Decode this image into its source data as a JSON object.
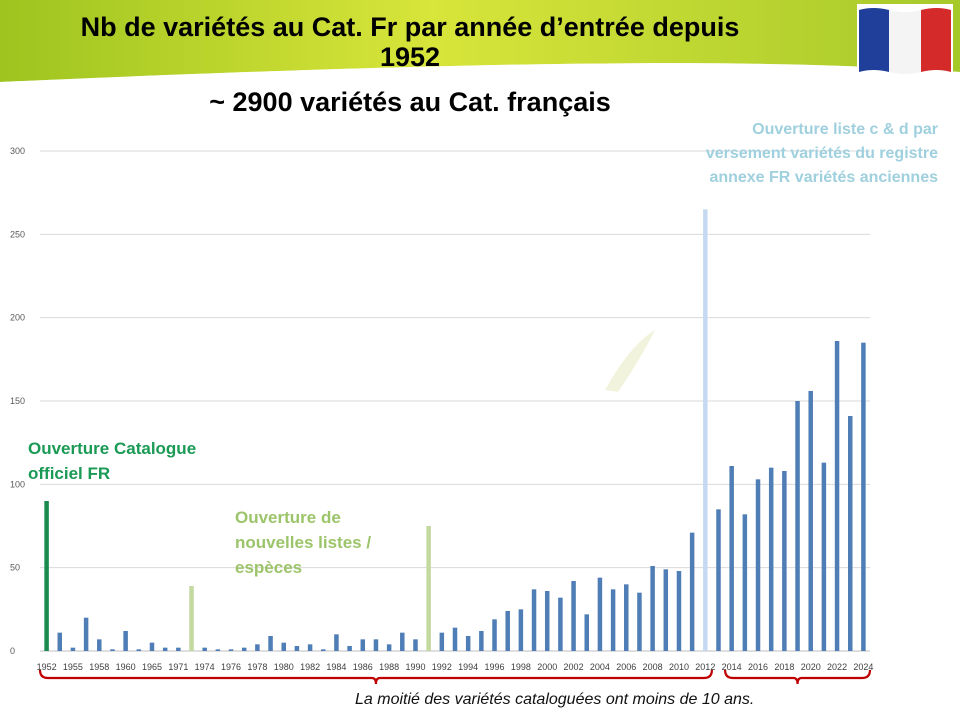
{
  "header": {
    "title_line1": "Nb de variétés au Cat. Fr par année d’entrée depuis",
    "title_line2": "1952",
    "subtitle": "~ 2900 variétés au Cat. français",
    "flag_colors": [
      "#1f3f9a",
      "#ffffff",
      "#d42a2a"
    ]
  },
  "annotations": {
    "catalogue": [
      "Ouverture Catalogue",
      "officiel FR"
    ],
    "new_lists": [
      "Ouverture de",
      "nouvelles listes /",
      "espèces"
    ],
    "lists_cd": [
      "Ouverture liste c & d par",
      "versement variétés du registre",
      "annexe FR variétés anciennes"
    ]
  },
  "footnote": "La moitié des variétés cataloguées ont moins de 10 ans.",
  "colors": {
    "bar": "#4f7db5",
    "highlight_catalogue": "#1a8a4e",
    "highlight_lists": "#c4d9a0",
    "highlight_cd": "#c6d9f0",
    "bracket": "#c00000"
  },
  "chart_data": {
    "type": "bar",
    "ylim": [
      0,
      300
    ],
    "yticks": [
      0,
      50,
      100,
      150,
      200,
      250,
      300
    ],
    "grid": true,
    "tick_labels": [
      {
        "label": "1952",
        "index": 0
      },
      {
        "label": "1955",
        "index": 2
      },
      {
        "label": "1958",
        "index": 4
      },
      {
        "label": "1960",
        "index": 6
      },
      {
        "label": "1965",
        "index": 8
      },
      {
        "label": "1971",
        "index": 10
      },
      {
        "label": "1974",
        "index": 12
      },
      {
        "label": "1976",
        "index": 14
      },
      {
        "label": "1978",
        "index": 16
      },
      {
        "label": "1980",
        "index": 18
      },
      {
        "label": "1982",
        "index": 20
      },
      {
        "label": "1984",
        "index": 22
      },
      {
        "label": "1986",
        "index": 24
      },
      {
        "label": "1988",
        "index": 26
      },
      {
        "label": "1990",
        "index": 28
      },
      {
        "label": "1992",
        "index": 30
      },
      {
        "label": "1994",
        "index": 32
      },
      {
        "label": "1996",
        "index": 34
      },
      {
        "label": "1998",
        "index": 36
      },
      {
        "label": "2000",
        "index": 38
      },
      {
        "label": "2002",
        "index": 40
      },
      {
        "label": "2004",
        "index": 42
      },
      {
        "label": "2006",
        "index": 44
      },
      {
        "label": "2008",
        "index": 46
      },
      {
        "label": "2010",
        "index": 48
      },
      {
        "label": "2012",
        "index": 50
      },
      {
        "label": "2014",
        "index": 52
      },
      {
        "label": "2016",
        "index": 54
      },
      {
        "label": "2018",
        "index": 56
      },
      {
        "label": "2020",
        "index": 58
      },
      {
        "label": "2022",
        "index": 60
      },
      {
        "label": "2024",
        "index": 62
      }
    ],
    "values": [
      90,
      11,
      2,
      20,
      7,
      1,
      12,
      1,
      5,
      2,
      2,
      39,
      2,
      1,
      1,
      2,
      4,
      9,
      5,
      3,
      4,
      1,
      10,
      3,
      7,
      7,
      4,
      11,
      7,
      75,
      11,
      14,
      9,
      12,
      19,
      24,
      25,
      37,
      36,
      32,
      42,
      22,
      44,
      37,
      40,
      35,
      51,
      49,
      48,
      71,
      265,
      85,
      111,
      82,
      103,
      110,
      108,
      150,
      156,
      113,
      186,
      141,
      185
    ],
    "highlights": [
      {
        "index": 0,
        "color_key": "highlight_catalogue"
      },
      {
        "index": 11,
        "color_key": "highlight_lists"
      },
      {
        "index": 29,
        "color_key": "highlight_lists"
      },
      {
        "index": 50,
        "color_key": "highlight_cd"
      }
    ],
    "brackets": [
      {
        "from_index": 0,
        "to_index": 50
      },
      {
        "from_index": 52,
        "to_index": 62
      }
    ]
  }
}
